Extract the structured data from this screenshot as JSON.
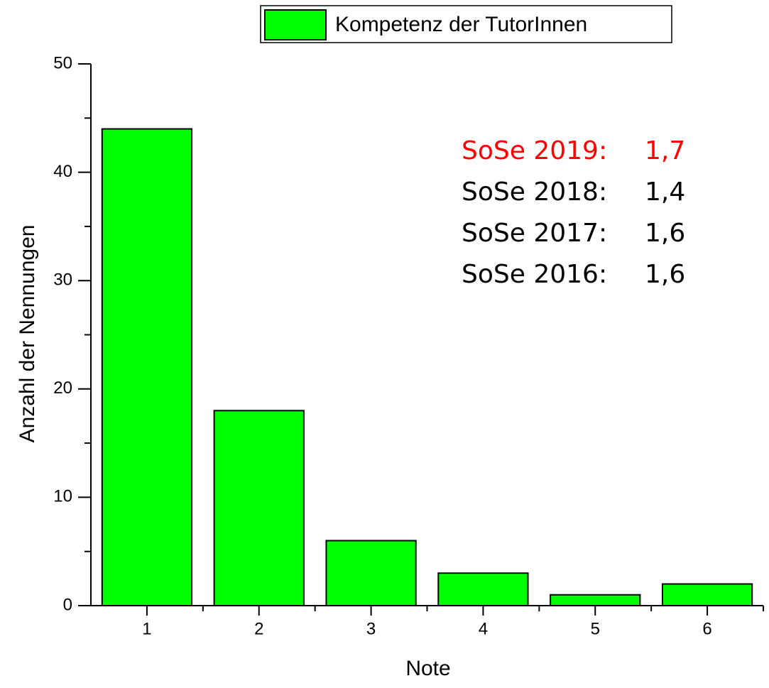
{
  "chart_data": {
    "type": "bar",
    "x": [
      1,
      2,
      3,
      4,
      5,
      6
    ],
    "series": [
      {
        "name": "Kompetenz der TutorInnen",
        "color": "#00ff00",
        "values": [
          44,
          18,
          6,
          3,
          1,
          2
        ]
      }
    ],
    "xlabel": "Note",
    "ylabel": "Anzahl der Nennungen",
    "xlim": [
      0.5,
      6.5
    ],
    "xticks": [
      1,
      2,
      3,
      4,
      5,
      6
    ],
    "xticks_minor": [
      1.5,
      2.5,
      3.5,
      4.5,
      5.5,
      6.5
    ],
    "ylim": [
      0,
      50
    ],
    "yticks": [
      0,
      10,
      20,
      30,
      40,
      50
    ],
    "yticks_minor": [
      5,
      15,
      25,
      35,
      45
    ],
    "legend": "top-right",
    "annotations": [
      {
        "label": "SoSe 2019:",
        "value": "1,7",
        "color": "#ff0000"
      },
      {
        "label": "SoSe 2018:",
        "value": "1,4",
        "color": "#000000"
      },
      {
        "label": "SoSe 2017:",
        "value": "1,6",
        "color": "#000000"
      },
      {
        "label": "SoSe 2016:",
        "value": "1,6",
        "color": "#000000"
      }
    ]
  }
}
